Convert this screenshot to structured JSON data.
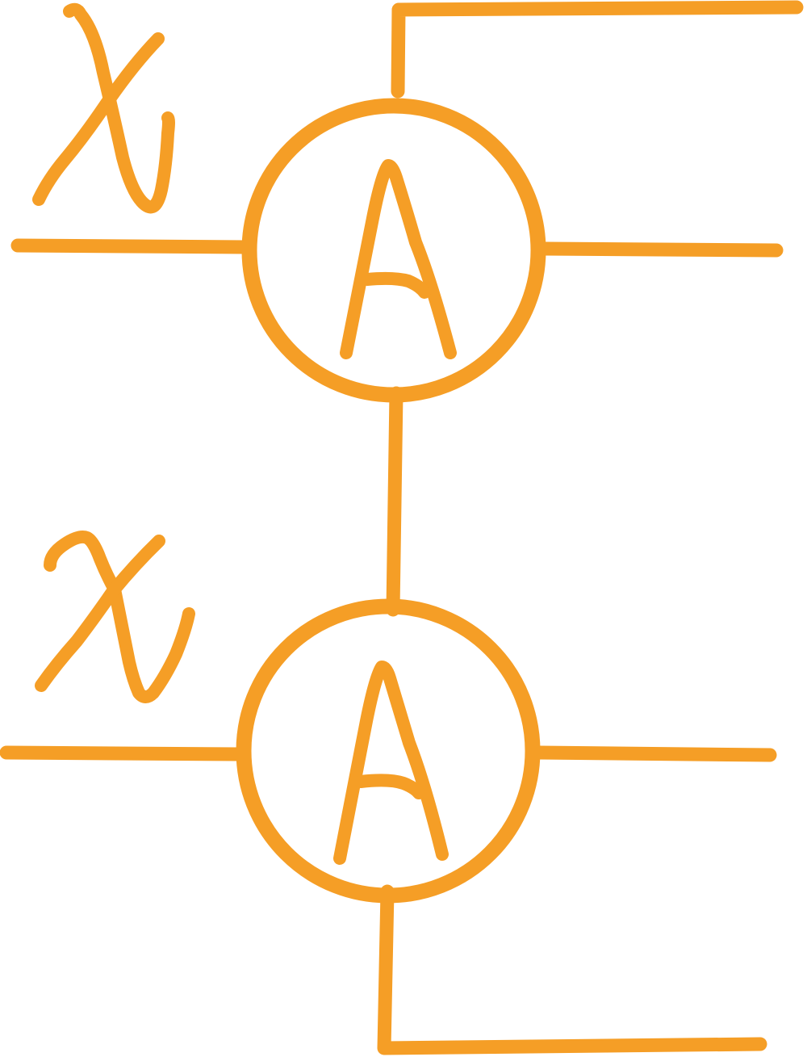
{
  "diagram": {
    "stroke_color": "#F59E26",
    "background": "#FFFFFF",
    "top_node": {
      "label": "A",
      "input_mark": "x"
    },
    "bottom_node": {
      "label": "A",
      "input_mark": "x"
    }
  }
}
